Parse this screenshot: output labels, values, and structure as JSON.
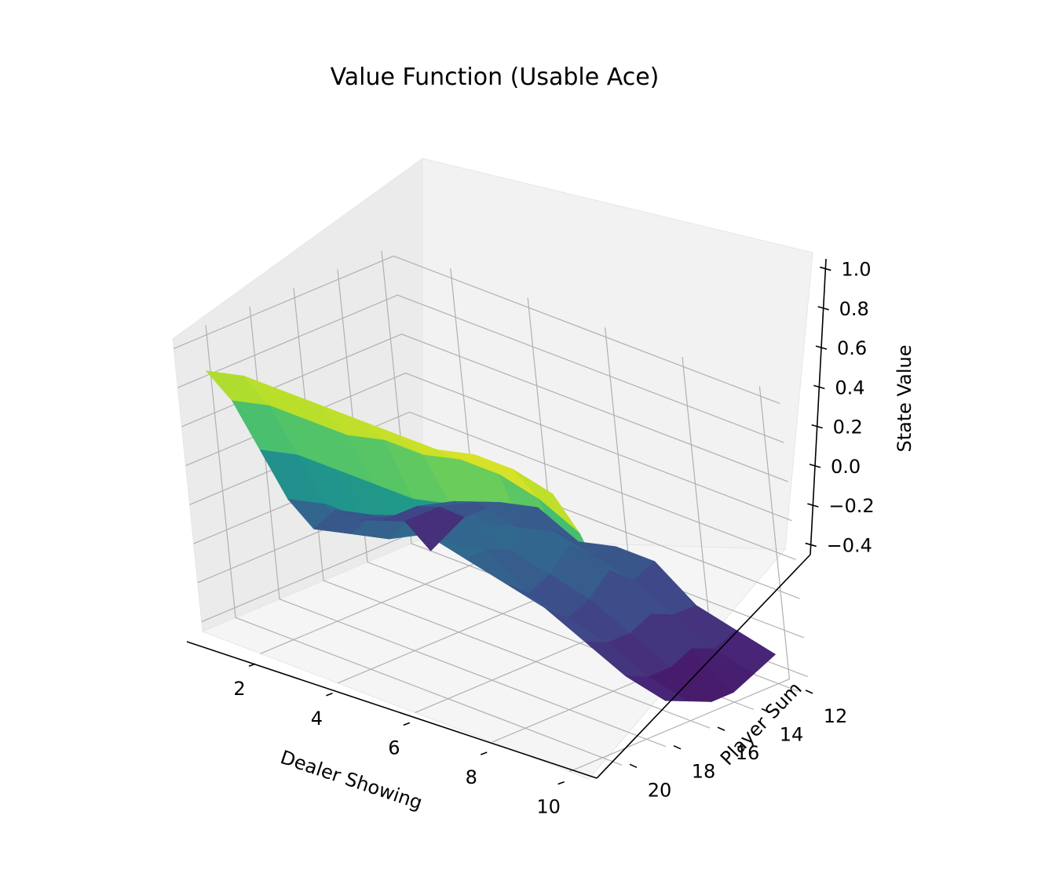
{
  "chart_data": {
    "type": "surface",
    "title": "Value Function (Usable Ace)",
    "xlabel": "Dealer Showing",
    "ylabel": "Player Sum",
    "zlabel": "State Value",
    "x": [
      1,
      2,
      3,
      4,
      5,
      6,
      7,
      8,
      9,
      10
    ],
    "y": [
      12,
      13,
      14,
      15,
      16,
      17,
      18,
      19,
      20,
      21
    ],
    "xlim": [
      0.5,
      10.5
    ],
    "ylim": [
      11.5,
      21.5
    ],
    "zlim": [
      -0.45,
      1.05
    ],
    "xticks": [
      "2",
      "4",
      "6",
      "8",
      "10"
    ],
    "yticks": [
      "12",
      "14",
      "16",
      "18",
      "20"
    ],
    "zticks": [
      "−0.4",
      "−0.2",
      "0.0",
      "0.2",
      "0.4",
      "0.6",
      "0.8",
      "1.0"
    ],
    "colormap": "viridis",
    "z": [
      [
        -0.45,
        -0.2,
        -0.05,
        0.0,
        -0.1,
        -0.05,
        -0.05,
        -0.2,
        -0.25,
        -0.3
      ],
      [
        -0.25,
        -0.1,
        0.0,
        -0.05,
        0.0,
        -0.05,
        -0.1,
        -0.2,
        -0.3,
        -0.35
      ],
      [
        -0.2,
        -0.05,
        0.05,
        0.0,
        0.1,
        0.05,
        0.0,
        -0.15,
        -0.25,
        -0.4
      ],
      [
        -0.15,
        -0.05,
        0.0,
        0.05,
        0.0,
        -0.05,
        -0.1,
        -0.2,
        -0.3,
        -0.4
      ],
      [
        -0.05,
        0.0,
        0.05,
        0.0,
        0.05,
        -0.1,
        -0.15,
        -0.2,
        -0.3,
        -0.35
      ],
      [
        -0.1,
        -0.05,
        0.0,
        0.1,
        0.05,
        0.0,
        -0.05,
        -0.15,
        -0.25,
        -0.3
      ],
      [
        0.1,
        0.15,
        0.15,
        0.2,
        0.2,
        0.2,
        0.25,
        0.1,
        0.05,
        -0.05
      ],
      [
        0.4,
        0.45,
        0.45,
        0.45,
        0.45,
        0.5,
        0.5,
        0.45,
        0.4,
        0.35
      ],
      [
        0.7,
        0.75,
        0.75,
        0.75,
        0.8,
        0.8,
        0.85,
        0.85,
        0.8,
        0.7
      ],
      [
        0.9,
        0.95,
        0.95,
        0.95,
        0.95,
        0.95,
        0.95,
        1.0,
        1.0,
        0.95
      ]
    ]
  }
}
